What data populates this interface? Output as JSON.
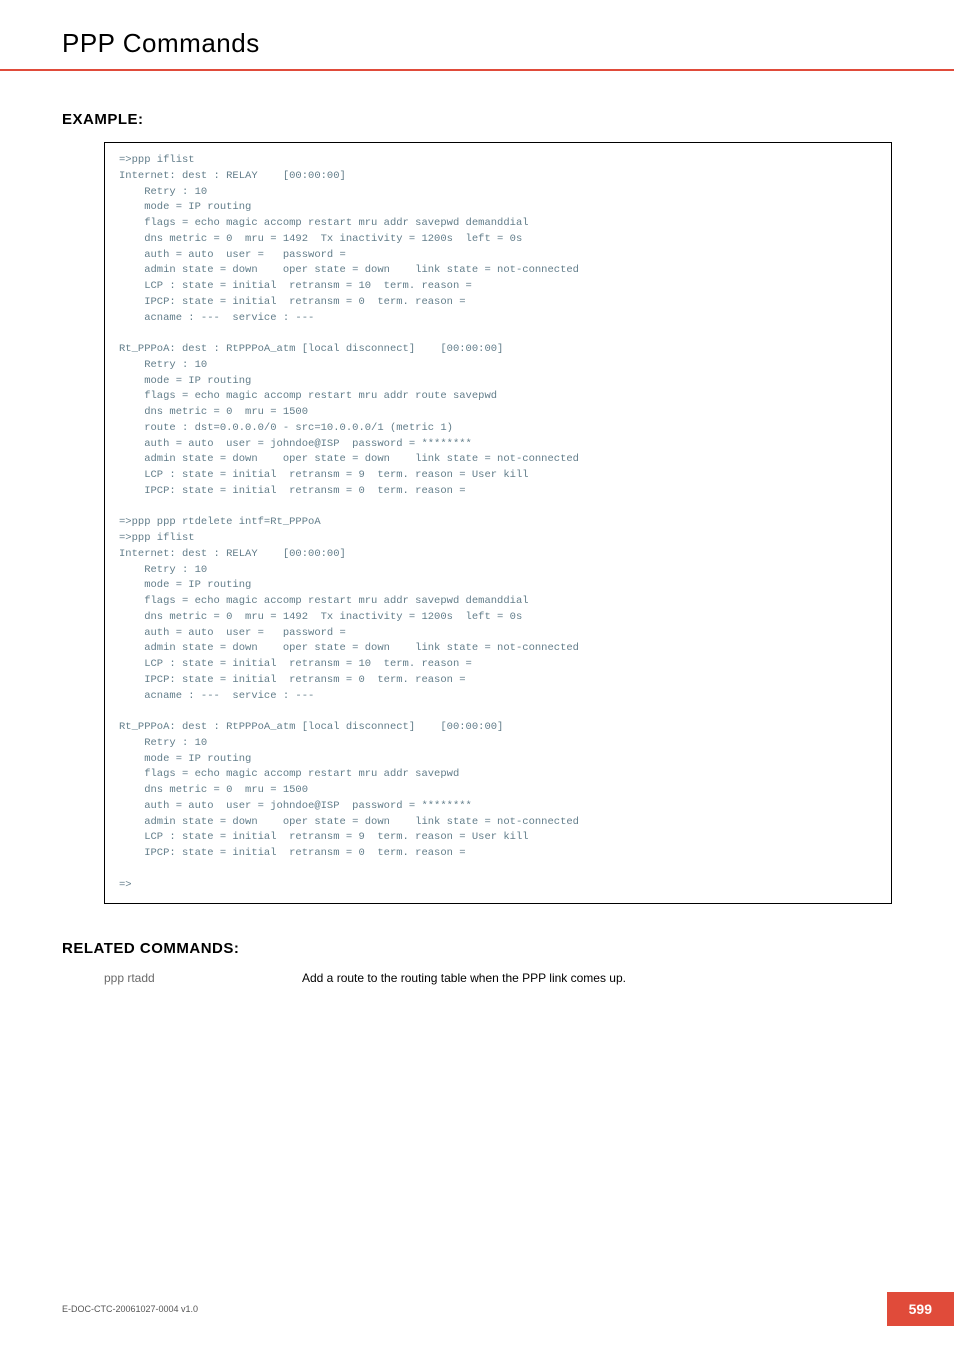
{
  "header": {
    "title": "PPP Commands"
  },
  "example": {
    "heading": "EXAMPLE:",
    "code": "=>ppp iflist\nInternet: dest : RELAY    [00:00:00]\n    Retry : 10\n    mode = IP routing\n    flags = echo magic accomp restart mru addr savepwd demanddial\n    dns metric = 0  mru = 1492  Tx inactivity = 1200s  left = 0s\n    auth = auto  user =   password =\n    admin state = down    oper state = down    link state = not-connected\n    LCP : state = initial  retransm = 10  term. reason =\n    IPCP: state = initial  retransm = 0  term. reason =\n    acname : ---  service : ---\n\nRt_PPPoA: dest : RtPPPoA_atm [local disconnect]    [00:00:00]\n    Retry : 10\n    mode = IP routing\n    flags = echo magic accomp restart mru addr route savepwd\n    dns metric = 0  mru = 1500\n    route : dst=0.0.0.0/0 - src=10.0.0.0/1 (metric 1)\n    auth = auto  user = johndoe@ISP  password = ********\n    admin state = down    oper state = down    link state = not-connected\n    LCP : state = initial  retransm = 9  term. reason = User kill\n    IPCP: state = initial  retransm = 0  term. reason =\n\n=>ppp ppp rtdelete intf=Rt_PPPoA\n=>ppp iflist\nInternet: dest : RELAY    [00:00:00]\n    Retry : 10\n    mode = IP routing\n    flags = echo magic accomp restart mru addr savepwd demanddial\n    dns metric = 0  mru = 1492  Tx inactivity = 1200s  left = 0s\n    auth = auto  user =   password =\n    admin state = down    oper state = down    link state = not-connected\n    LCP : state = initial  retransm = 10  term. reason =\n    IPCP: state = initial  retransm = 0  term. reason =\n    acname : ---  service : ---\n\nRt_PPPoA: dest : RtPPPoA_atm [local disconnect]    [00:00:00]\n    Retry : 10\n    mode = IP routing\n    flags = echo magic accomp restart mru addr savepwd\n    dns metric = 0  mru = 1500\n    auth = auto  user = johndoe@ISP  password = ********\n    admin state = down    oper state = down    link state = not-connected\n    LCP : state = initial  retransm = 9  term. reason = User kill\n    IPCP: state = initial  retransm = 0  term. reason =\n\n=>"
  },
  "related": {
    "heading": "RELATED COMMANDS:",
    "cmd": "ppp rtadd",
    "desc": "Add a route to the routing table when the PPP link comes up."
  },
  "footer": {
    "docref": "E-DOC-CTC-20061027-0004 v1.0",
    "page": "599"
  },
  "colors": {
    "accent": "#e04b3a",
    "code_text": "#627d8a"
  }
}
